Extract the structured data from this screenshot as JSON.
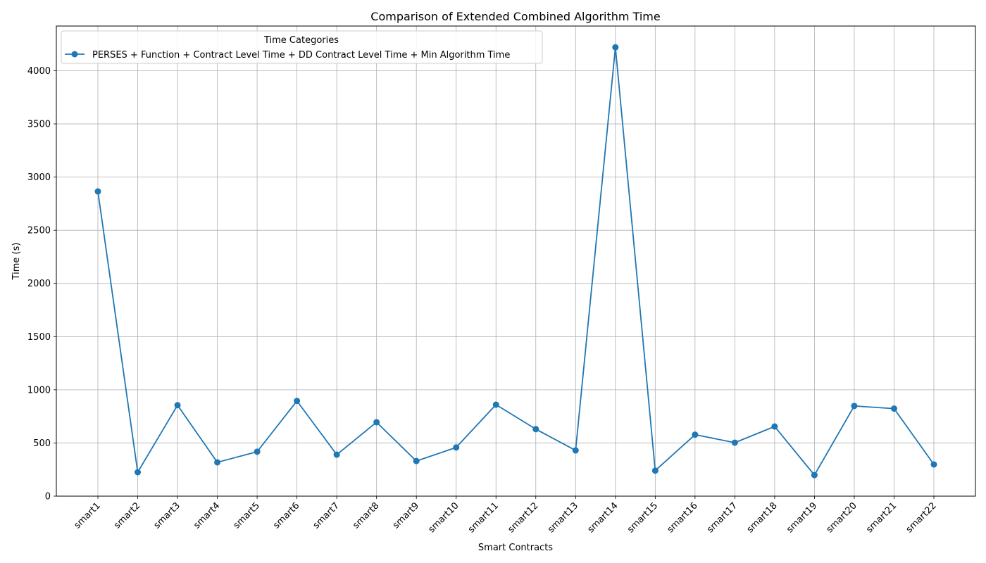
{
  "chart_data": {
    "type": "line",
    "title": "Comparison of Extended Combined Algorithm Time",
    "xlabel": "Smart Contracts",
    "ylabel": "Time (s)",
    "categories": [
      "smart1",
      "smart2",
      "smart3",
      "smart4",
      "smart5",
      "smart6",
      "smart7",
      "smart8",
      "smart9",
      "smart10",
      "smart11",
      "smart12",
      "smart13",
      "smart14",
      "smart15",
      "smart16",
      "smart17",
      "smart18",
      "smart19",
      "smart20",
      "smart21",
      "smart22"
    ],
    "ylim": [
      0,
      4420
    ],
    "yticks": [
      0,
      500,
      1000,
      1500,
      2000,
      2500,
      3000,
      3500,
      4000
    ],
    "grid": true,
    "legend": {
      "title": "Time Categories",
      "placement": "top-left"
    },
    "series": [
      {
        "name": "PERSES + Function + Contract Level Time + DD Contract Level Time + Min Algorithm Time",
        "color": "#1f77b4",
        "marker": "circle",
        "values": [
          2865,
          225,
          855,
          318,
          418,
          895,
          390,
          695,
          330,
          458,
          860,
          630,
          430,
          4220,
          240,
          578,
          503,
          655,
          198,
          848,
          823,
          298
        ]
      }
    ]
  }
}
